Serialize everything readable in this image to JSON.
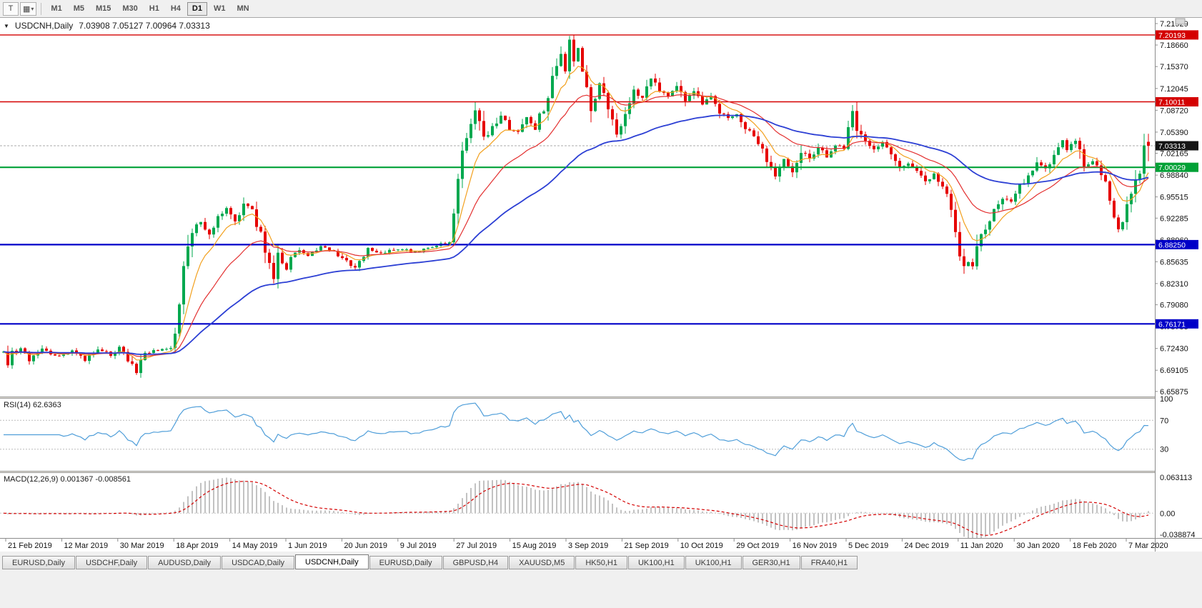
{
  "toolbar": {
    "buttons": [
      {
        "id": "text-tool",
        "glyph": "T"
      },
      {
        "id": "objects-dropdown",
        "glyph": "▦",
        "caret": "▾"
      }
    ],
    "timeframes": [
      "M1",
      "M5",
      "M15",
      "M30",
      "H1",
      "H4",
      "D1",
      "W1",
      "MN"
    ],
    "active_timeframe": "D1"
  },
  "chart": {
    "dropdown_glyph": "▼",
    "symbol_label": "USDCNH,Daily",
    "ohlc_label": "7.03908 7.05127 7.00964 7.03313"
  },
  "price_axis": {
    "ticks": [
      7.21929,
      7.1866,
      7.1537,
      7.12045,
      7.0872,
      7.0539,
      7.02165,
      6.9884,
      6.95515,
      6.92285,
      6.8896,
      6.85635,
      6.8231,
      6.7908,
      6.75755,
      6.7243,
      6.69105,
      6.65875
    ]
  },
  "hlines": [
    {
      "price": 7.20193,
      "label": "7.20193",
      "color": "#d40000",
      "width": 1.4
    },
    {
      "price": 7.10011,
      "label": "7.10011",
      "color": "#d40000",
      "width": 1.4
    },
    {
      "price": 7.00029,
      "label": "7.00029",
      "color": "#00a136",
      "width": 2.2
    },
    {
      "price": 6.8825,
      "label": "6.88250",
      "color": "#0000c8",
      "width": 2.2
    },
    {
      "price": 6.76171,
      "label": "6.76171",
      "color": "#0000c8",
      "width": 2.2
    }
  ],
  "current_price": {
    "value": 7.03313,
    "label": "7.03313",
    "badge_color": "#141414"
  },
  "date_axis": {
    "labels": [
      "21 Feb 2019",
      "12 Mar 2019",
      "30 Mar 2019",
      "18 Apr 2019",
      "14 May 2019",
      "1 Jun 2019",
      "20 Jun 2019",
      "9 Jul 2019",
      "27 Jul 2019",
      "15 Aug 2019",
      "3 Sep 2019",
      "21 Sep 2019",
      "10 Oct 2019",
      "29 Oct 2019",
      "16 Nov 2019",
      "5 Dec 2019",
      "24 Dec 2019",
      "11 Jan 2020",
      "30 Jan 2020",
      "18 Feb 2020",
      "7 Mar 2020"
    ]
  },
  "rsi": {
    "title": "RSI(14) 62.6363",
    "levels": [
      100,
      70,
      30
    ],
    "line_color": "#4f9ed9",
    "last_value": 62.6363
  },
  "macd": {
    "title": "MACD(12,26,9) 0.001367 -0.008561",
    "axis_labels": [
      "0.063113",
      "0.00",
      "-0.038874"
    ],
    "range": {
      "min": -0.038874,
      "max": 0.063113
    },
    "histogram_color": "#c2c2c2",
    "signal_color": "#d40000",
    "main_value": 0.001367,
    "signal_value": -0.008561
  },
  "tabs": {
    "items": [
      "EURUSD,Daily",
      "USDCHF,Daily",
      "AUDUSD,Daily",
      "USDCAD,Daily",
      "USDCNH,Daily",
      "EURUSD,Daily",
      "GBPUSD,H4",
      "XAUUSD,M5",
      "HK50,H1",
      "UK100,H1",
      "UK100,H1",
      "GER30,H1",
      "FRA40,H1"
    ],
    "active_index": 4
  },
  "chart_data": {
    "type": "candlestick",
    "symbol": "USDCNH",
    "timeframe": "Daily",
    "bars": 268,
    "last_bar": {
      "open": 7.03908,
      "high": 7.05127,
      "low": 7.00964,
      "close": 7.03313
    },
    "y_range": {
      "min": 6.651,
      "max": 7.228
    },
    "candle_colors": {
      "up": "#00a84f",
      "down": "#e60000"
    },
    "moving_averages": [
      {
        "period": 8,
        "color": "#f2a01e"
      },
      {
        "period": 21,
        "color": "#e33030"
      },
      {
        "period": 55,
        "color": "#2c3fd4"
      }
    ],
    "indicators": [
      "RSI(14)",
      "MACD(12,26,9)"
    ],
    "price_path_anchors": [
      [
        0,
        6.718
      ],
      [
        1,
        6.697
      ],
      [
        2,
        6.714
      ],
      [
        4,
        6.727
      ],
      [
        6,
        6.708
      ],
      [
        9,
        6.722
      ],
      [
        13,
        6.712
      ],
      [
        16,
        6.72
      ],
      [
        19,
        6.708
      ],
      [
        22,
        6.722
      ],
      [
        25,
        6.715
      ],
      [
        27,
        6.724
      ],
      [
        29,
        6.706
      ],
      [
        31,
        6.688
      ],
      [
        33,
        6.716
      ],
      [
        36,
        6.722
      ],
      [
        39,
        6.726
      ],
      [
        40,
        6.742
      ],
      [
        41,
        6.795
      ],
      [
        42,
        6.852
      ],
      [
        43,
        6.882
      ],
      [
        44,
        6.906
      ],
      [
        46,
        6.916
      ],
      [
        48,
        6.898
      ],
      [
        50,
        6.922
      ],
      [
        52,
        6.936
      ],
      [
        54,
        6.918
      ],
      [
        56,
        6.944
      ],
      [
        58,
        6.934
      ],
      [
        60,
        6.898
      ],
      [
        62,
        6.852
      ],
      [
        63,
        6.834
      ],
      [
        64,
        6.87
      ],
      [
        66,
        6.846
      ],
      [
        68,
        6.876
      ],
      [
        71,
        6.866
      ],
      [
        74,
        6.88
      ],
      [
        77,
        6.872
      ],
      [
        80,
        6.858
      ],
      [
        82,
        6.848
      ],
      [
        85,
        6.874
      ],
      [
        88,
        6.87
      ],
      [
        92,
        6.877
      ],
      [
        96,
        6.871
      ],
      [
        100,
        6.879
      ],
      [
        104,
        6.886
      ],
      [
        105,
        6.922
      ],
      [
        106,
        6.978
      ],
      [
        107,
        7.032
      ],
      [
        108,
        7.05
      ],
      [
        110,
        7.094
      ],
      [
        112,
        7.042
      ],
      [
        114,
        7.06
      ],
      [
        116,
        7.082
      ],
      [
        118,
        7.06
      ],
      [
        120,
        7.054
      ],
      [
        122,
        7.076
      ],
      [
        124,
        7.06
      ],
      [
        126,
        7.092
      ],
      [
        128,
        7.136
      ],
      [
        130,
        7.168
      ],
      [
        131,
        7.152
      ],
      [
        132,
        7.186
      ],
      [
        133,
        7.158
      ],
      [
        134,
        7.183
      ],
      [
        136,
        7.124
      ],
      [
        137,
        7.094
      ],
      [
        139,
        7.128
      ],
      [
        140,
        7.11
      ],
      [
        142,
        7.066
      ],
      [
        143,
        7.05
      ],
      [
        145,
        7.088
      ],
      [
        147,
        7.116
      ],
      [
        149,
        7.104
      ],
      [
        151,
        7.14
      ],
      [
        153,
        7.12
      ],
      [
        155,
        7.106
      ],
      [
        157,
        7.126
      ],
      [
        159,
        7.104
      ],
      [
        161,
        7.116
      ],
      [
        163,
        7.096
      ],
      [
        165,
        7.106
      ],
      [
        167,
        7.086
      ],
      [
        169,
        7.074
      ],
      [
        171,
        7.08
      ],
      [
        173,
        7.06
      ],
      [
        175,
        7.05
      ],
      [
        177,
        7.026
      ],
      [
        179,
        7.0
      ],
      [
        180,
        6.986
      ],
      [
        182,
        7.014
      ],
      [
        184,
        6.996
      ],
      [
        186,
        7.026
      ],
      [
        188,
        7.01
      ],
      [
        190,
        7.03
      ],
      [
        192,
        7.016
      ],
      [
        194,
        7.036
      ],
      [
        196,
        7.026
      ],
      [
        197,
        7.052
      ],
      [
        198,
        7.086
      ],
      [
        199,
        7.06
      ],
      [
        201,
        7.036
      ],
      [
        203,
        7.026
      ],
      [
        205,
        7.036
      ],
      [
        207,
        7.016
      ],
      [
        209,
        6.998
      ],
      [
        211,
        7.006
      ],
      [
        213,
        6.993
      ],
      [
        215,
        6.98
      ],
      [
        217,
        6.99
      ],
      [
        219,
        6.966
      ],
      [
        220,
        6.956
      ],
      [
        221,
        6.936
      ],
      [
        222,
        6.904
      ],
      [
        223,
        6.87
      ],
      [
        224,
        6.851
      ],
      [
        225,
        6.86
      ],
      [
        226,
        6.844
      ],
      [
        227,
        6.88
      ],
      [
        229,
        6.906
      ],
      [
        231,
        6.934
      ],
      [
        233,
        6.956
      ],
      [
        235,
        6.946
      ],
      [
        237,
        6.97
      ],
      [
        239,
        6.986
      ],
      [
        241,
        7.006
      ],
      [
        243,
        6.996
      ],
      [
        245,
        7.02
      ],
      [
        247,
        7.04
      ],
      [
        248,
        7.03
      ],
      [
        250,
        7.044
      ],
      [
        251,
        7.02
      ],
      [
        252,
        7.0
      ],
      [
        254,
        7.01
      ],
      [
        256,
        6.99
      ],
      [
        257,
        6.973
      ],
      [
        258,
        6.95
      ],
      [
        259,
        6.93
      ],
      [
        260,
        6.908
      ],
      [
        261,
        6.916
      ],
      [
        262,
        6.944
      ],
      [
        263,
        6.962
      ],
      [
        264,
        6.984
      ],
      [
        265,
        6.992
      ],
      [
        266,
        7.042
      ],
      [
        267,
        7.033
      ]
    ]
  }
}
